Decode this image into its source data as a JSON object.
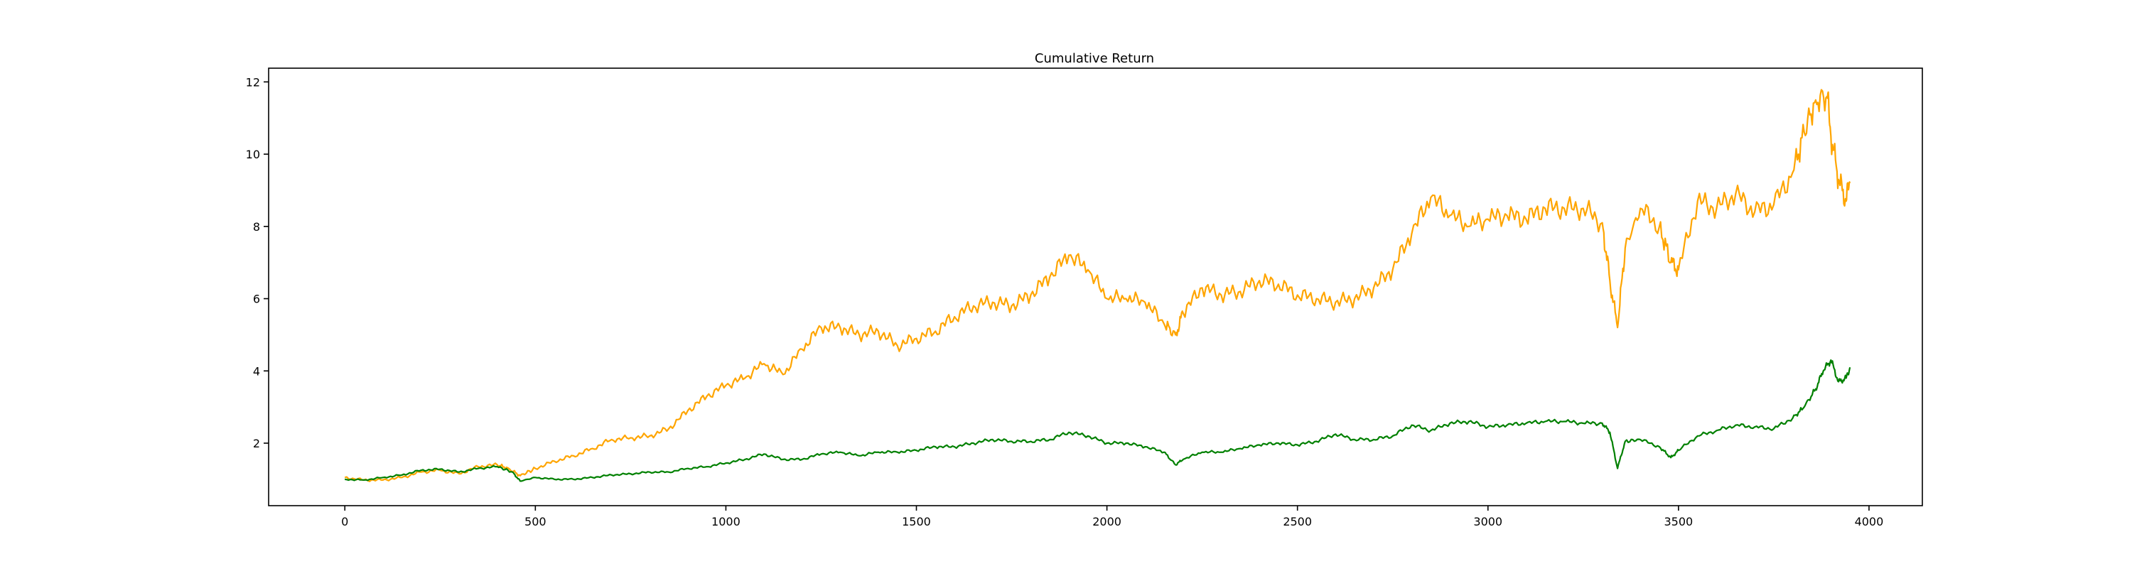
{
  "chart_data": {
    "type": "line",
    "title": "Cumulative Return",
    "xlabel": "",
    "ylabel": "",
    "xlim": [
      -200,
      4140
    ],
    "ylim": [
      0.27,
      12.38
    ],
    "x_ticks": [
      0,
      500,
      1000,
      1500,
      2000,
      2500,
      3000,
      3500,
      4000
    ],
    "y_ticks": [
      2,
      4,
      6,
      8,
      10,
      12
    ],
    "grid": false,
    "legend": "none",
    "series": [
      {
        "color": "#ffa500",
        "x": [
          0,
          50,
          100,
          150,
          200,
          250,
          300,
          350,
          400,
          430,
          460,
          500,
          550,
          600,
          650,
          700,
          750,
          800,
          850,
          900,
          950,
          1000,
          1050,
          1100,
          1150,
          1200,
          1250,
          1300,
          1350,
          1400,
          1450,
          1500,
          1550,
          1600,
          1650,
          1700,
          1750,
          1800,
          1850,
          1900,
          1950,
          2000,
          2050,
          2100,
          2150,
          2180,
          2200,
          2250,
          2300,
          2350,
          2400,
          2450,
          2500,
          2550,
          2600,
          2650,
          2700,
          2750,
          2800,
          2850,
          2900,
          2950,
          3000,
          3050,
          3100,
          3150,
          3200,
          3250,
          3300,
          3320,
          3340,
          3360,
          3400,
          3450,
          3480,
          3500,
          3550,
          3600,
          3650,
          3700,
          3750,
          3800,
          3830,
          3860,
          3890,
          3900,
          3920,
          3940,
          3950
        ],
        "values": [
          1.05,
          0.98,
          0.98,
          1.05,
          1.2,
          1.25,
          1.15,
          1.35,
          1.4,
          1.3,
          1.1,
          1.3,
          1.5,
          1.65,
          1.85,
          2.1,
          2.15,
          2.2,
          2.4,
          2.9,
          3.3,
          3.6,
          3.8,
          4.2,
          3.9,
          4.6,
          5.2,
          5.2,
          5.0,
          5.1,
          4.7,
          4.9,
          5.1,
          5.5,
          5.8,
          5.9,
          5.8,
          6.1,
          6.6,
          7.2,
          6.8,
          6.0,
          6.0,
          5.9,
          5.3,
          5.0,
          5.6,
          6.3,
          6.1,
          6.2,
          6.5,
          6.4,
          6.1,
          6.0,
          5.9,
          6.0,
          6.3,
          6.8,
          7.8,
          8.8,
          8.3,
          8.0,
          8.2,
          8.3,
          8.2,
          8.5,
          8.5,
          8.5,
          8.1,
          6.5,
          5.2,
          7.4,
          8.5,
          8.0,
          7.0,
          6.8,
          8.7,
          8.5,
          8.9,
          8.4,
          8.6,
          9.5,
          10.6,
          11.5,
          11.6,
          10.5,
          9.3,
          8.7,
          9.2
        ]
      },
      {
        "color": "#008000",
        "x": [
          0,
          50,
          100,
          150,
          200,
          250,
          300,
          350,
          400,
          440,
          460,
          500,
          550,
          600,
          650,
          700,
          750,
          800,
          850,
          900,
          950,
          1000,
          1050,
          1100,
          1150,
          1200,
          1250,
          1300,
          1350,
          1400,
          1450,
          1500,
          1550,
          1600,
          1650,
          1700,
          1750,
          1800,
          1850,
          1900,
          1950,
          2000,
          2050,
          2100,
          2150,
          2180,
          2200,
          2250,
          2300,
          2350,
          2400,
          2450,
          2500,
          2550,
          2600,
          2650,
          2700,
          2750,
          2800,
          2850,
          2900,
          2950,
          3000,
          3050,
          3100,
          3150,
          3200,
          3250,
          3300,
          3320,
          3340,
          3360,
          3400,
          3450,
          3480,
          3500,
          3550,
          3600,
          3650,
          3700,
          3750,
          3800,
          3830,
          3860,
          3880,
          3900,
          3920,
          3940,
          3950
        ],
        "values": [
          1.0,
          0.98,
          1.05,
          1.12,
          1.25,
          1.28,
          1.2,
          1.3,
          1.35,
          1.2,
          0.95,
          1.05,
          1.0,
          1.0,
          1.05,
          1.12,
          1.15,
          1.2,
          1.2,
          1.3,
          1.35,
          1.45,
          1.55,
          1.7,
          1.55,
          1.55,
          1.7,
          1.75,
          1.65,
          1.75,
          1.75,
          1.8,
          1.9,
          1.9,
          2.0,
          2.1,
          2.05,
          2.05,
          2.1,
          2.3,
          2.2,
          2.0,
          2.0,
          1.9,
          1.75,
          1.4,
          1.55,
          1.75,
          1.75,
          1.85,
          1.95,
          2.0,
          1.95,
          2.05,
          2.25,
          2.1,
          2.1,
          2.2,
          2.5,
          2.35,
          2.55,
          2.6,
          2.45,
          2.5,
          2.55,
          2.6,
          2.6,
          2.55,
          2.55,
          2.3,
          1.3,
          2.05,
          2.1,
          1.9,
          1.6,
          1.8,
          2.2,
          2.35,
          2.5,
          2.45,
          2.4,
          2.7,
          3.0,
          3.5,
          4.0,
          4.3,
          3.7,
          3.8,
          4.1
        ]
      }
    ]
  }
}
